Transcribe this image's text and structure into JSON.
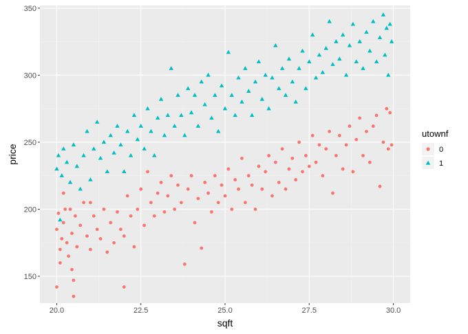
{
  "chart_data": {
    "type": "scatter",
    "xlabel": "sqft",
    "ylabel": "price",
    "xlim": [
      19.5,
      30.5
    ],
    "ylim": [
      130,
      352
    ],
    "x_ticks": [
      20.0,
      22.5,
      25.0,
      27.5,
      30.0
    ],
    "x_tick_labels": [
      "20.0",
      "22.5",
      "25.0",
      "27.5",
      "30.0"
    ],
    "y_ticks": [
      150,
      200,
      250,
      300,
      350
    ],
    "y_tick_labels": [
      "150",
      "200",
      "250",
      "300",
      "350"
    ],
    "grid": true,
    "legend": {
      "title": "utownf",
      "position": "right",
      "entries": [
        {
          "label": "0",
          "color": "#F8766D",
          "shape": "circle"
        },
        {
          "label": "1",
          "color": "#00BFC4",
          "shape": "triangle"
        }
      ]
    },
    "background": "#EBEBEB",
    "series": [
      {
        "name": "0",
        "color": "#F8766D",
        "shape": "circle",
        "points": [
          [
            20.0,
            142
          ],
          [
            20.0,
            185
          ],
          [
            20.05,
            197
          ],
          [
            20.1,
            170
          ],
          [
            20.1,
            160
          ],
          [
            20.15,
            178
          ],
          [
            20.2,
            212
          ],
          [
            20.2,
            190
          ],
          [
            20.25,
            200
          ],
          [
            20.3,
            175
          ],
          [
            20.35,
            165
          ],
          [
            20.4,
            200
          ],
          [
            20.45,
            182
          ],
          [
            20.45,
            155
          ],
          [
            20.5,
            147
          ],
          [
            20.5,
            135
          ],
          [
            20.55,
            195
          ],
          [
            20.6,
            172
          ],
          [
            20.7,
            188
          ],
          [
            20.8,
            205
          ],
          [
            20.9,
            180
          ],
          [
            21.0,
            170
          ],
          [
            21.0,
            205
          ],
          [
            21.1,
            195
          ],
          [
            21.2,
            185
          ],
          [
            21.3,
            178
          ],
          [
            21.4,
            200
          ],
          [
            21.5,
            168
          ],
          [
            21.6,
            190
          ],
          [
            21.7,
            175
          ],
          [
            21.8,
            198
          ],
          [
            21.9,
            185
          ],
          [
            22.0,
            142
          ],
          [
            22.0,
            180
          ],
          [
            22.1,
            210
          ],
          [
            22.2,
            195
          ],
          [
            22.3,
            172
          ],
          [
            22.4,
            200
          ],
          [
            22.5,
            215
          ],
          [
            22.6,
            188
          ],
          [
            22.7,
            228
          ],
          [
            22.8,
            205
          ],
          [
            22.9,
            195
          ],
          [
            23.0,
            212
          ],
          [
            23.1,
            220
          ],
          [
            23.2,
            198
          ],
          [
            23.3,
            210
          ],
          [
            23.4,
            225
          ],
          [
            23.5,
            200
          ],
          [
            23.6,
            218
          ],
          [
            23.7,
            205
          ],
          [
            23.8,
            159
          ],
          [
            23.9,
            215
          ],
          [
            24.0,
            225
          ],
          [
            24.1,
            190
          ],
          [
            24.2,
            208
          ],
          [
            24.3,
            171
          ],
          [
            24.4,
            220
          ],
          [
            24.5,
            212
          ],
          [
            24.6,
            198
          ],
          [
            24.7,
            225
          ],
          [
            24.8,
            205
          ],
          [
            24.9,
            218
          ],
          [
            25.0,
            210
          ],
          [
            25.1,
            230
          ],
          [
            25.2,
            200
          ],
          [
            25.3,
            222
          ],
          [
            25.4,
            215
          ],
          [
            25.5,
            238
          ],
          [
            25.6,
            205
          ],
          [
            25.7,
            225
          ],
          [
            25.8,
            218
          ],
          [
            25.9,
            200
          ],
          [
            26.0,
            232
          ],
          [
            26.1,
            215
          ],
          [
            26.2,
            228
          ],
          [
            26.3,
            240
          ],
          [
            26.4,
            210
          ],
          [
            26.5,
            235
          ],
          [
            26.6,
            220
          ],
          [
            26.7,
            245
          ],
          [
            26.8,
            215
          ],
          [
            26.9,
            230
          ],
          [
            27.0,
            238
          ],
          [
            27.1,
            222
          ],
          [
            27.2,
            250
          ],
          [
            27.3,
            228
          ],
          [
            27.4,
            240
          ],
          [
            27.5,
            232
          ],
          [
            27.6,
            255
          ],
          [
            27.7,
            235
          ],
          [
            27.8,
            248
          ],
          [
            27.9,
            225
          ],
          [
            28.0,
            245
          ],
          [
            28.1,
            258
          ],
          [
            28.2,
            212
          ],
          [
            28.3,
            240
          ],
          [
            28.4,
            255
          ],
          [
            28.5,
            230
          ],
          [
            28.6,
            248
          ],
          [
            28.7,
            262
          ],
          [
            28.8,
            228
          ],
          [
            28.9,
            252
          ],
          [
            29.0,
            268
          ],
          [
            29.1,
            240
          ],
          [
            29.2,
            258
          ],
          [
            29.3,
            235
          ],
          [
            29.4,
            262
          ],
          [
            29.5,
            270
          ],
          [
            29.6,
            217
          ],
          [
            29.7,
            250
          ],
          [
            29.8,
            275
          ],
          [
            29.85,
            245
          ],
          [
            29.9,
            272
          ],
          [
            29.95,
            248
          ]
        ]
      },
      {
        "name": "1",
        "color": "#00BFC4",
        "shape": "triangle",
        "points": [
          [
            20.0,
            230
          ],
          [
            20.05,
            240
          ],
          [
            20.1,
            192
          ],
          [
            20.15,
            225
          ],
          [
            20.2,
            245
          ],
          [
            20.3,
            235
          ],
          [
            20.4,
            220
          ],
          [
            20.5,
            248
          ],
          [
            20.6,
            232
          ],
          [
            20.7,
            215
          ],
          [
            20.8,
            240
          ],
          [
            20.9,
            258
          ],
          [
            21.0,
            222
          ],
          [
            21.1,
            245
          ],
          [
            21.2,
            265
          ],
          [
            21.3,
            238
          ],
          [
            21.4,
            250
          ],
          [
            21.5,
            228
          ],
          [
            21.6,
            255
          ],
          [
            21.7,
            242
          ],
          [
            21.8,
            262
          ],
          [
            21.9,
            248
          ],
          [
            22.0,
            228
          ],
          [
            22.1,
            258
          ],
          [
            22.2,
            240
          ],
          [
            22.3,
            270
          ],
          [
            22.4,
            252
          ],
          [
            22.5,
            262
          ],
          [
            22.6,
            245
          ],
          [
            22.7,
            275
          ],
          [
            22.8,
            258
          ],
          [
            22.9,
            240
          ],
          [
            23.0,
            268
          ],
          [
            23.1,
            282
          ],
          [
            23.2,
            255
          ],
          [
            23.3,
            270
          ],
          [
            23.4,
            305
          ],
          [
            23.5,
            262
          ],
          [
            23.6,
            285
          ],
          [
            23.7,
            270
          ],
          [
            23.8,
            255
          ],
          [
            23.9,
            290
          ],
          [
            24.0,
            272
          ],
          [
            24.1,
            285
          ],
          [
            24.2,
            262
          ],
          [
            24.3,
            295
          ],
          [
            24.4,
            278
          ],
          [
            24.5,
            300
          ],
          [
            24.6,
            268
          ],
          [
            24.7,
            285
          ],
          [
            24.8,
            258
          ],
          [
            24.9,
            292
          ],
          [
            25.0,
            275
          ],
          [
            25.1,
            317
          ],
          [
            25.2,
            285
          ],
          [
            25.3,
            270
          ],
          [
            25.4,
            298
          ],
          [
            25.5,
            280
          ],
          [
            25.6,
            305
          ],
          [
            25.7,
            288
          ],
          [
            25.8,
            270
          ],
          [
            25.9,
            295
          ],
          [
            26.0,
            310
          ],
          [
            26.1,
            282
          ],
          [
            26.2,
            300
          ],
          [
            26.3,
            275
          ],
          [
            26.4,
            298
          ],
          [
            26.5,
            322
          ],
          [
            26.6,
            290
          ],
          [
            26.7,
            305
          ],
          [
            26.8,
            285
          ],
          [
            26.9,
            312
          ],
          [
            27.0,
            295
          ],
          [
            27.1,
            280
          ],
          [
            27.2,
            305
          ],
          [
            27.3,
            318
          ],
          [
            27.4,
            290
          ],
          [
            27.5,
            310
          ],
          [
            27.6,
            330
          ],
          [
            27.7,
            298
          ],
          [
            27.8,
            315
          ],
          [
            27.9,
            302
          ],
          [
            28.0,
            320
          ],
          [
            28.1,
            340
          ],
          [
            28.2,
            308
          ],
          [
            28.3,
            325
          ],
          [
            28.4,
            312
          ],
          [
            28.5,
            330
          ],
          [
            28.6,
            300
          ],
          [
            28.7,
            322
          ],
          [
            28.8,
            338
          ],
          [
            28.9,
            310
          ],
          [
            29.0,
            325
          ],
          [
            29.1,
            305
          ],
          [
            29.2,
            332
          ],
          [
            29.3,
            318
          ],
          [
            29.4,
            340
          ],
          [
            29.5,
            310
          ],
          [
            29.6,
            328
          ],
          [
            29.7,
            345
          ],
          [
            29.75,
            315
          ],
          [
            29.8,
            335
          ],
          [
            29.85,
            300
          ],
          [
            29.9,
            338
          ],
          [
            29.95,
            325
          ]
        ]
      }
    ]
  }
}
